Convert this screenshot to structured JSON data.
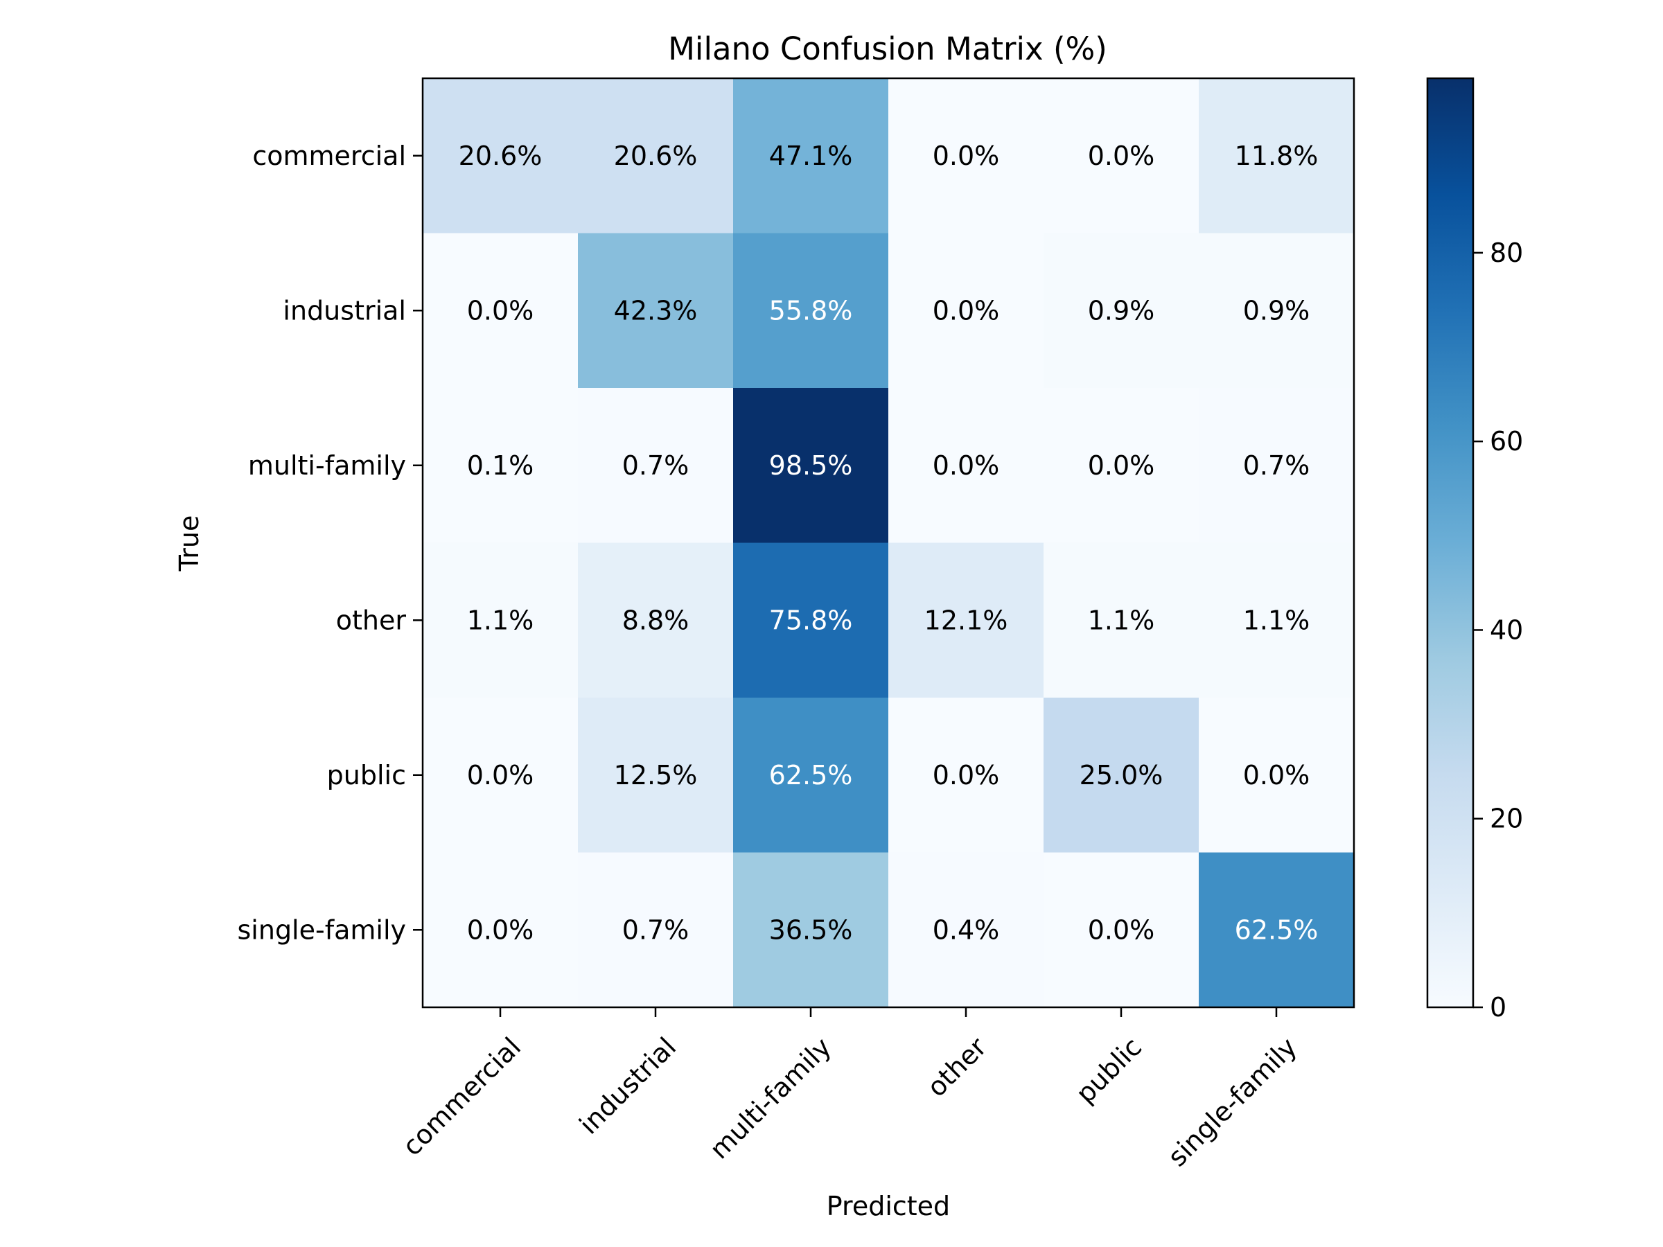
{
  "chart_data": {
    "type": "heatmap",
    "title": "Milano Confusion Matrix (%)",
    "xlabel": "Predicted",
    "ylabel": "True",
    "x_categories": [
      "commercial",
      "industrial",
      "multi-family",
      "other",
      "public",
      "single-family"
    ],
    "y_categories": [
      "commercial",
      "industrial",
      "multi-family",
      "other",
      "public",
      "single-family"
    ],
    "values": [
      [
        20.6,
        20.6,
        47.1,
        0.0,
        0.0,
        11.8
      ],
      [
        0.0,
        42.3,
        55.8,
        0.0,
        0.9,
        0.9
      ],
      [
        0.1,
        0.7,
        98.5,
        0.0,
        0.0,
        0.7
      ],
      [
        1.1,
        8.8,
        75.8,
        12.1,
        1.1,
        1.1
      ],
      [
        0.0,
        12.5,
        62.5,
        0.0,
        25.0,
        0.0
      ],
      [
        0.0,
        0.7,
        36.5,
        0.4,
        0.0,
        62.5
      ]
    ],
    "cell_labels": [
      [
        "20.6%",
        "20.6%",
        "47.1%",
        "0.0%",
        "0.0%",
        "11.8%"
      ],
      [
        "0.0%",
        "42.3%",
        "55.8%",
        "0.0%",
        "0.9%",
        "0.9%"
      ],
      [
        "0.1%",
        "0.7%",
        "98.5%",
        "0.0%",
        "0.0%",
        "0.7%"
      ],
      [
        "1.1%",
        "8.8%",
        "75.8%",
        "12.1%",
        "1.1%",
        "1.1%"
      ],
      [
        "0.0%",
        "12.5%",
        "62.5%",
        "0.0%",
        "25.0%",
        "0.0%"
      ],
      [
        "0.0%",
        "0.7%",
        "36.5%",
        "0.4%",
        "0.0%",
        "62.5%"
      ]
    ],
    "colormap": "Blues",
    "color_range": [
      0,
      98.5
    ],
    "colorbar": {
      "ticks": [
        0,
        20,
        40,
        60,
        80
      ],
      "tick_labels": [
        "0",
        "20",
        "40",
        "60",
        "80"
      ]
    },
    "grid": false,
    "legend": "colorbar-right"
  }
}
